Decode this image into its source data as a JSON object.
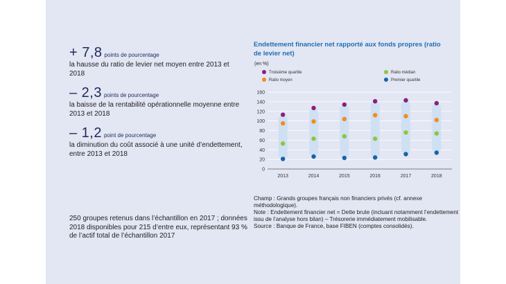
{
  "stats": [
    {
      "value": "+ 7,8",
      "unit": "points de pourcentage",
      "description": "la hausse du ratio de levier net moyen entre 2013 et 2018"
    },
    {
      "value": "– 2,3",
      "unit": "points de pourcentage",
      "description": "la baisse de la rentabilité opérationnelle moyenne entre 2013 et 2018"
    },
    {
      "value": "– 1,2",
      "unit": "point de pourcentage",
      "description": "la diminution du coût associé à une unité d’endettement, entre 2013 et 2018"
    }
  ],
  "sample_note": "250 groupes retenus dans l’échantillon en 2017 ; données 2018 disponibles pour 215 d’entre eux, représentant 93 % de l’actif total de l’échantillon 2017",
  "chart_data": {
    "type": "scatter",
    "title": "Endettement financier net rapporté aux fonds propres (ratio de levier net)",
    "unit_label": "(en %)",
    "categories": [
      "2013",
      "2014",
      "2015",
      "2016",
      "2017",
      "2018"
    ],
    "ylim": [
      0,
      160
    ],
    "yticks": [
      0,
      20,
      40,
      60,
      80,
      100,
      120,
      140,
      160
    ],
    "range_bar": {
      "color": "#cfe0f3"
    },
    "series": [
      {
        "name": "Troisième quartile",
        "color": "#8c1f7a",
        "values": [
          113,
          127,
          134,
          141,
          143,
          137
        ]
      },
      {
        "name": "Ratio moyen",
        "color": "#f28c1e",
        "values": [
          95,
          99,
          104,
          112,
          110,
          102
        ]
      },
      {
        "name": "Ratio médian",
        "color": "#8cc63e",
        "values": [
          53,
          63,
          68,
          63,
          76,
          74
        ]
      },
      {
        "name": "Premier quartile",
        "color": "#1565a8",
        "values": [
          21,
          26,
          23,
          24,
          31,
          34
        ]
      }
    ],
    "legend_position": "top"
  },
  "notes": {
    "champ": "Champ : Grands groupes français non financiers privés (cf. annexe méthodologique).",
    "note": "Note : Endettement financier net = Dette brute (incluant notamment l’endettement issu de l’analyse hors bilan) – Trésorerie immédiatement mobilisable.",
    "source": "Source : Banque de France, base FIBEN (comptes consolidés)."
  }
}
